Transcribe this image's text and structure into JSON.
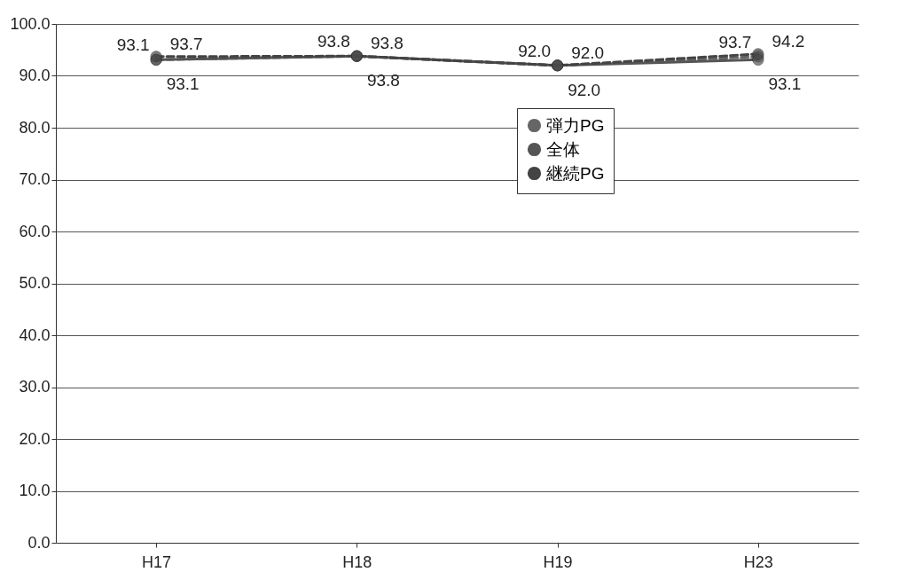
{
  "chart_data": {
    "type": "line",
    "categories": [
      "H17",
      "H18",
      "H19",
      "H23"
    ],
    "series": [
      {
        "name": "弾力PG",
        "color": "#666666",
        "line_style": "dashed",
        "values": [
          93.1,
          93.8,
          92.0,
          93.7
        ],
        "value_labels": [
          "93.1",
          "93.8",
          "92.0",
          "93.7"
        ]
      },
      {
        "name": "全体",
        "color": "#555555",
        "line_style": "solid",
        "values": [
          93.1,
          93.8,
          92.0,
          93.1
        ],
        "value_labels": [
          "93.1",
          "93.8",
          "92.0",
          "93.1"
        ]
      },
      {
        "name": "継続PG",
        "color": "#444444",
        "line_style": "dashed",
        "values": [
          93.7,
          93.8,
          92.0,
          94.2
        ],
        "value_labels": [
          "93.7",
          "93.8",
          "92.0",
          "94.2"
        ]
      }
    ],
    "ylim": [
      0,
      100
    ],
    "yticks": [
      {
        "value": 0,
        "label": "0.0"
      },
      {
        "value": 10,
        "label": "10.0"
      },
      {
        "value": 20,
        "label": "20.0"
      },
      {
        "value": 30,
        "label": "30.0"
      },
      {
        "value": 40,
        "label": "40.0"
      },
      {
        "value": 50,
        "label": "50.0"
      },
      {
        "value": 60,
        "label": "60.0"
      },
      {
        "value": 70,
        "label": "70.0"
      },
      {
        "value": 80,
        "label": "80.0"
      },
      {
        "value": 90,
        "label": "90.0"
      },
      {
        "value": 100,
        "label": "100.0"
      }
    ],
    "grid": "y",
    "legend": "top right",
    "marker": "circle"
  }
}
